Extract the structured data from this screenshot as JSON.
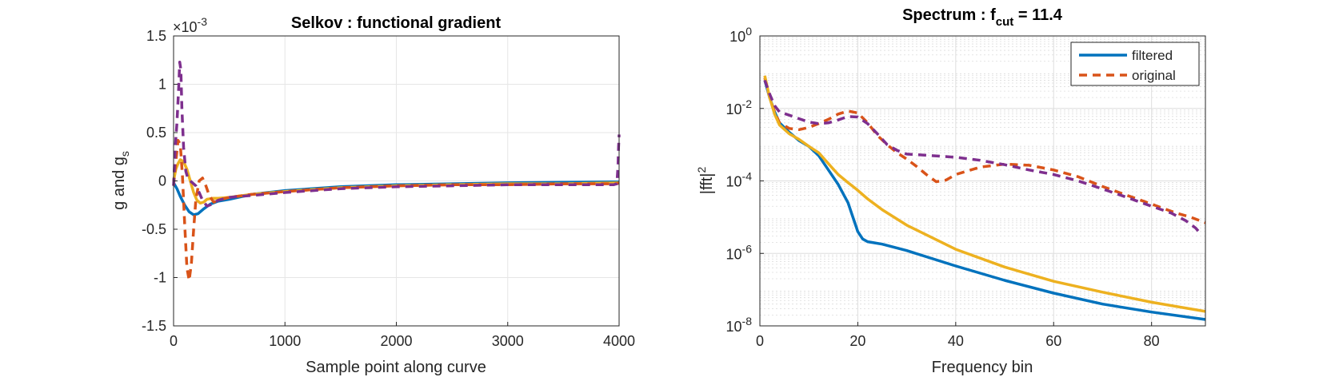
{
  "chart_data": [
    {
      "type": "line",
      "title": "Selkov : functional gradient",
      "xlabel": "Sample point along curve",
      "ylabel": "g and g",
      "ylabel_sub": "s",
      "exponent_prefix": "×10",
      "exponent": "-3",
      "xlim": [
        0,
        4000
      ],
      "ylim": [
        -1.5,
        1.5
      ],
      "xticks": [
        "0",
        "1000",
        "2000",
        "3000",
        "4000"
      ],
      "yticks": [
        "-1.5",
        "-1",
        "-0.5",
        "0",
        "0.5",
        "1",
        "1.5"
      ],
      "grid": true,
      "series": [
        {
          "color": "#0072BD",
          "dash": "solid",
          "x": [
            0,
            30,
            60,
            100,
            140,
            180,
            220,
            270,
            330,
            400,
            500,
            700,
            1000,
            1500,
            2000,
            2500,
            3000,
            3500,
            3980,
            4000
          ],
          "y": [
            -0.02,
            -0.08,
            -0.16,
            -0.25,
            -0.32,
            -0.35,
            -0.34,
            -0.29,
            -0.24,
            -0.21,
            -0.19,
            -0.14,
            -0.1,
            -0.06,
            -0.04,
            -0.03,
            -0.02,
            -0.015,
            -0.01,
            -0.01
          ]
        },
        {
          "color": "#EDB120",
          "dash": "solid",
          "x": [
            0,
            20,
            40,
            60,
            90,
            120,
            150,
            180,
            210,
            240,
            270,
            300,
            350,
            400,
            500,
            700,
            1000,
            1500,
            2000,
            2500,
            3000,
            3500,
            3980,
            4000
          ],
          "y": [
            0.0,
            0.12,
            0.18,
            0.22,
            0.2,
            0.12,
            0.0,
            -0.12,
            -0.2,
            -0.23,
            -0.22,
            -0.19,
            -0.18,
            -0.18,
            -0.17,
            -0.14,
            -0.11,
            -0.07,
            -0.05,
            -0.04,
            -0.03,
            -0.03,
            -0.02,
            -0.02
          ]
        },
        {
          "color": "#D95319",
          "dash": "dashed",
          "x": [
            0,
            20,
            40,
            60,
            80,
            100,
            120,
            140,
            160,
            180,
            200,
            230,
            260,
            290,
            320,
            360,
            400,
            500,
            700,
            1000,
            1500,
            2000,
            2500,
            3000,
            3500,
            3980,
            4000
          ],
          "y": [
            -0.05,
            0.2,
            0.42,
            0.38,
            0.05,
            -0.45,
            -0.9,
            -1.03,
            -0.85,
            -0.5,
            -0.2,
            0.0,
            0.03,
            -0.05,
            -0.15,
            -0.22,
            -0.2,
            -0.17,
            -0.14,
            -0.11,
            -0.07,
            -0.05,
            -0.04,
            -0.04,
            -0.03,
            -0.03,
            -0.02
          ]
        },
        {
          "color": "#7E2F8E",
          "dash": "dashed",
          "x": [
            0,
            15,
            30,
            45,
            55,
            65,
            75,
            90,
            110,
            130,
            150,
            170,
            200,
            230,
            260,
            300,
            350,
            400,
            500,
            700,
            1000,
            1500,
            2000,
            2500,
            3000,
            3500,
            3950,
            3980,
            3990,
            3995,
            4000
          ],
          "y": [
            -0.05,
            0.35,
            0.6,
            0.95,
            1.23,
            1.15,
            0.75,
            0.35,
            0.1,
            0.02,
            0.0,
            -0.02,
            -0.05,
            -0.12,
            -0.2,
            -0.26,
            -0.24,
            -0.2,
            -0.17,
            -0.15,
            -0.12,
            -0.08,
            -0.06,
            -0.05,
            -0.04,
            -0.04,
            -0.04,
            -0.03,
            0.15,
            0.35,
            0.48
          ]
        }
      ]
    },
    {
      "type": "line",
      "title_main": "Spectrum : f",
      "title_sub": "cut",
      "title_rest": " = 11.4",
      "xlabel": "Frequency bin",
      "ylabel": "|fft|",
      "ylabel_sup": "2",
      "xlim": [
        0,
        91
      ],
      "ylim": [
        1e-08,
        1
      ],
      "yscale": "log",
      "xticks": [
        "0",
        "20",
        "40",
        "60",
        "80"
      ],
      "ytick_base": "10",
      "ytick_exponents": [
        "-8",
        "-6",
        "-4",
        "-2",
        "0"
      ],
      "grid": true,
      "legend": {
        "placement": "top-right",
        "entries": [
          "filtered",
          "original"
        ]
      },
      "series": [
        {
          "name": "filtered",
          "color": "#0072BD",
          "dash": "solid",
          "x": [
            1,
            2,
            3,
            4,
            6,
            8,
            10,
            12,
            14,
            16,
            18,
            19,
            20,
            21,
            22,
            23,
            25,
            30,
            40,
            50,
            60,
            70,
            80,
            91
          ],
          "y": [
            0.06,
            0.02,
            0.008,
            0.004,
            0.0022,
            0.0013,
            0.0009,
            0.0005,
            0.0002,
            8e-05,
            2.5e-05,
            1e-05,
            4e-06,
            2.5e-06,
            2.1e-06,
            2e-06,
            1.8e-06,
            1.2e-06,
            4.5e-07,
            1.8e-07,
            8e-08,
            4e-08,
            2.4e-08,
            1.5e-08
          ]
        },
        {
          "name": "original",
          "color": "#D95319",
          "dash": "dashed",
          "x": [
            1,
            2,
            3,
            4,
            6,
            8,
            10,
            12,
            14,
            16,
            18,
            20,
            22,
            24,
            26,
            28,
            30,
            32,
            34,
            36,
            38,
            40,
            45,
            50,
            55,
            60,
            65,
            70,
            75,
            80,
            85,
            88,
            91
          ],
          "y": [
            0.07,
            0.02,
            0.008,
            0.004,
            0.0028,
            0.0026,
            0.003,
            0.0038,
            0.005,
            0.007,
            0.0085,
            0.0075,
            0.004,
            0.0018,
            0.001,
            0.0006,
            0.0004,
            0.00025,
            0.00015,
            9.5e-05,
            0.000105,
            0.00015,
            0.00024,
            0.00029,
            0.00027,
            0.0002,
            0.00013,
            7e-05,
            4e-05,
            2.3e-05,
            1.3e-05,
            1e-05,
            7e-06
          ]
        },
        {
          "color": "#EDB120",
          "dash": "solid",
          "x": [
            1,
            2,
            3,
            4,
            6,
            8,
            10,
            12,
            14,
            16,
            18,
            20,
            22,
            25,
            30,
            40,
            50,
            60,
            70,
            80,
            91
          ],
          "y": [
            0.08,
            0.02,
            0.007,
            0.0035,
            0.002,
            0.0014,
            0.0009,
            0.0006,
            0.0003,
            0.00015,
            9e-05,
            5.5e-05,
            3.2e-05,
            1.6e-05,
            6e-06,
            1.3e-06,
            4.2e-07,
            1.7e-07,
            8.5e-08,
            4.5e-08,
            2.5e-08
          ]
        },
        {
          "color": "#7E2F8E",
          "dash": "dashed",
          "x": [
            1,
            2,
            3,
            4,
            6,
            8,
            10,
            12,
            14,
            16,
            18,
            20,
            22,
            24,
            26,
            28,
            30,
            35,
            40,
            45,
            50,
            55,
            60,
            65,
            70,
            75,
            80,
            84,
            87,
            89,
            90
          ],
          "y": [
            0.06,
            0.025,
            0.012,
            0.008,
            0.0065,
            0.0052,
            0.0042,
            0.0038,
            0.004,
            0.0048,
            0.006,
            0.0058,
            0.0038,
            0.002,
            0.001,
            0.0007,
            0.00055,
            0.0005,
            0.00045,
            0.00037,
            0.00028,
            0.0002,
            0.00015,
            0.0001,
            6e-05,
            3.5e-05,
            2e-05,
            1.3e-05,
            8e-06,
            5e-06,
            3.5e-06
          ]
        }
      ]
    }
  ]
}
